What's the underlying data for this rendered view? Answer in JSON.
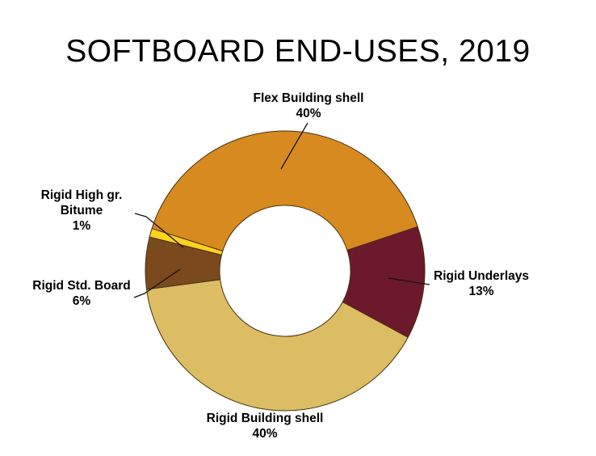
{
  "title": "SOFTBOARD END-USES, 2019",
  "chart_data": {
    "type": "pie",
    "subtype": "donut",
    "title": "SOFTBOARD END-USES, 2019",
    "units": "percent",
    "rotation_deg": 287.6,
    "hole_ratio": 0.47,
    "outline_color": "#45310E",
    "legend": "none (direct labels with leader lines)",
    "segments": [
      {
        "id": "flex-building-shell",
        "label": "Flex Building shell",
        "value": 40,
        "pct_text": "40%",
        "color": "#D78A20",
        "label_lines": [
          "Flex Building shell"
        ]
      },
      {
        "id": "rigid-underlays",
        "label": "Rigid Underlays",
        "value": 13,
        "pct_text": "13%",
        "color": "#6C1A2B",
        "label_lines": [
          "Rigid Underlays"
        ]
      },
      {
        "id": "rigid-building-shell",
        "label": "Rigid Building shell",
        "value": 40,
        "pct_text": "40%",
        "color": "#DDBD63",
        "label_lines": [
          "Rigid Building shell"
        ]
      },
      {
        "id": "rigid-std-board",
        "label": "Rigid Std. Board",
        "value": 6,
        "pct_text": "6%",
        "color": "#7A4A1E",
        "label_lines": [
          "Rigid Std. Board"
        ]
      },
      {
        "id": "rigid-high-gr-bitume",
        "label": "Rigid High gr. Bitume",
        "value": 1,
        "pct_text": "1%",
        "color": "#FFD21E",
        "label_lines": [
          "Rigid High gr.",
          "Bitume"
        ]
      }
    ]
  }
}
